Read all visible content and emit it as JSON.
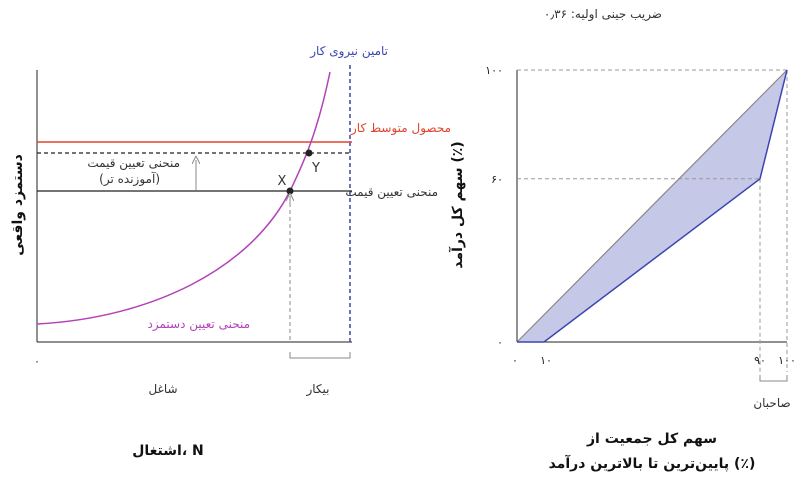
{
  "gini_caption": "ضریب جینی اولیه: ۰٫۳۶",
  "left_panel": {
    "y_axis_label": "دستمزد واقعی",
    "x_axis_label": "اشتغال، N",
    "x_origin_tick": "۰",
    "employed_label": "شاغل",
    "unemployed_label": "بیکار",
    "labor_force_label": "تامین نیروی کار",
    "avg_product_label": "محصول متوسط کار",
    "price_setting_label": "منحنی تعیین قیمت",
    "educated_price_label_line1": "منحنی تعیین قیمت",
    "educated_price_label_line2": "(آموزنده تر)",
    "wage_setting_label": "منحنی تعیین دستمزد",
    "point_x": "X",
    "point_y": "Y",
    "colors": {
      "avg_product": "#e0452b",
      "wage_curve": "#b341b8",
      "labor_force": "#3a47b0",
      "axis": "#222222"
    }
  },
  "right_panel": {
    "y_axis_label": "سهم کل درآمد (٪)",
    "x_axis_label_line1": "سهم کل جمعیت از",
    "x_axis_label_line2": "پایین‌ترین تا بالاترین درآمد (٪)",
    "owners_label": "صاحبان",
    "y_ticks": [
      "۰",
      "۶۰",
      "۱۰۰"
    ],
    "x_ticks": [
      "۰",
      "۱۰",
      "۹۰",
      "۱۰۰"
    ],
    "colors": {
      "fill": "#c5c8e6",
      "lorenz": "#3a47b0",
      "equality": "#888888"
    }
  },
  "chart_data": {
    "type": "area",
    "xlabel": "سهم کل جمعیت از پایین‌ترین تا بالاترین درآمد (٪)",
    "ylabel": "سهم کل درآمد (٪)",
    "xlim": [
      0,
      100
    ],
    "ylim": [
      0,
      100
    ],
    "x_ticks": [
      0,
      10,
      90,
      100
    ],
    "y_ticks": [
      0,
      60,
      100
    ],
    "series": [
      {
        "x": [
          0,
          100
        ],
        "y": [
          0,
          100
        ]
      },
      {
        "x": [
          0,
          10,
          90,
          100
        ],
        "y": [
          0,
          0,
          60,
          100
        ]
      }
    ]
  }
}
